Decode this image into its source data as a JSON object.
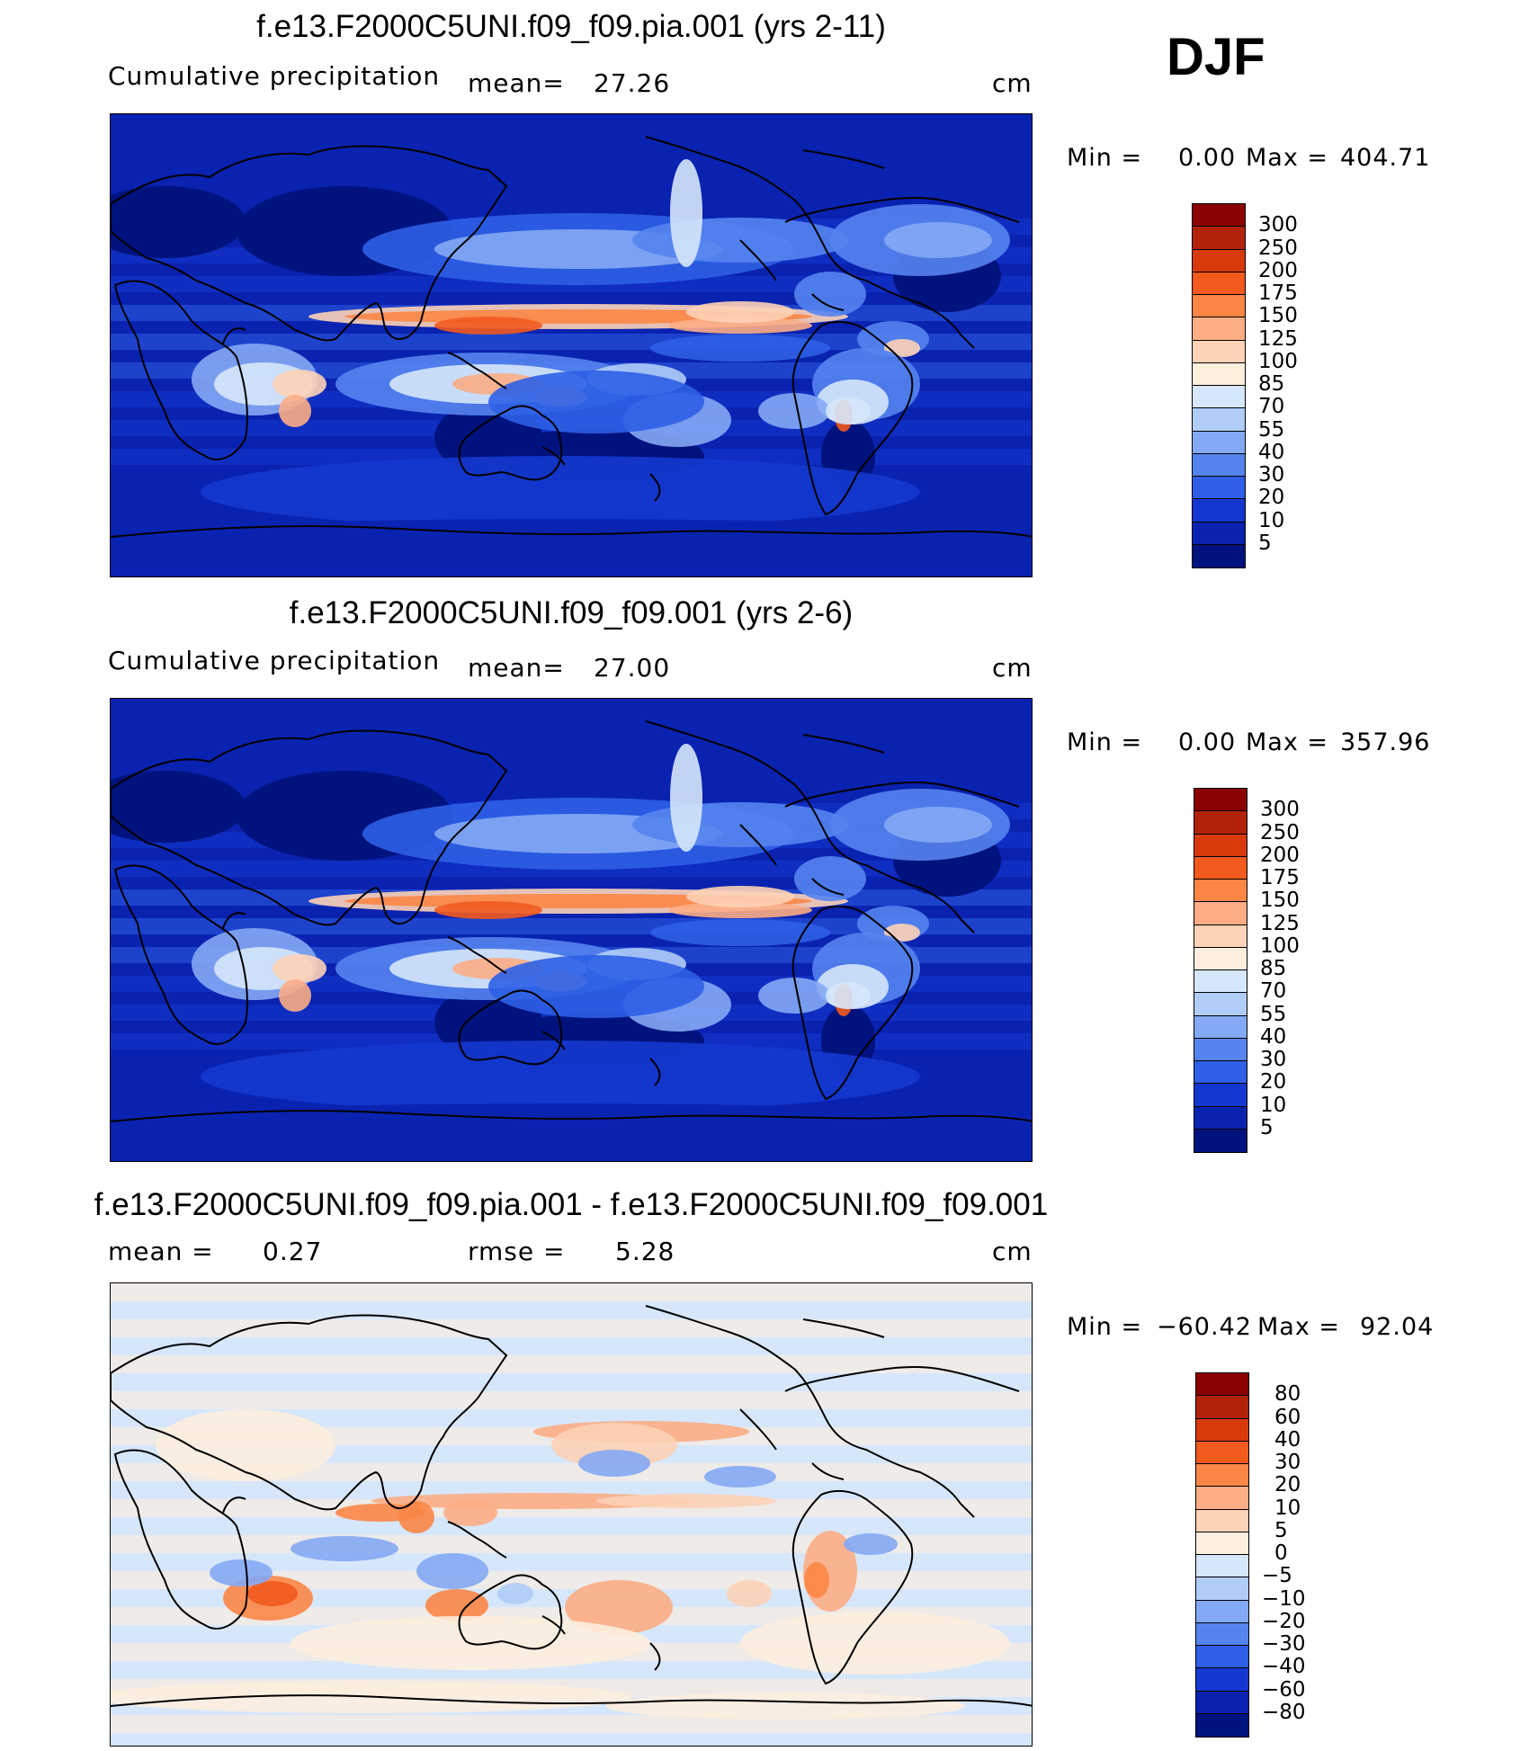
{
  "season": "DJF",
  "panels": [
    {
      "title": "f.e13.F2000C5UNI.f09_f09.pia.001 (yrs 2-11)",
      "variable": "Cumulative precipitation",
      "stat1_label": "mean=",
      "stat1_value": "27.26",
      "units": "cm",
      "min_label": "Min =",
      "min_value": "0.00",
      "max_label": "Max =",
      "max_value": "404.71",
      "colorbar_levels": [
        "300",
        "250",
        "200",
        "175",
        "150",
        "125",
        "100",
        "85",
        "70",
        "55",
        "40",
        "30",
        "20",
        "10",
        "5"
      ],
      "colorbar_colors": [
        "#8b0000",
        "#b22208",
        "#d93a0c",
        "#f25a1e",
        "#fb8646",
        "#fcad85",
        "#fdd2b6",
        "#fdeede",
        "#d6e7fb",
        "#b0cdf8",
        "#84a9f4",
        "#5584ef",
        "#2e5fe6",
        "#1438cf",
        "#0a22b0",
        "#00127d"
      ],
      "field": "abs"
    },
    {
      "title": "f.e13.F2000C5UNI.f09_f09.001 (yrs 2-6)",
      "variable": "Cumulative precipitation",
      "stat1_label": "mean=",
      "stat1_value": "27.00",
      "units": "cm",
      "min_label": "Min =",
      "min_value": "0.00",
      "max_label": "Max =",
      "max_value": "357.96",
      "colorbar_levels": [
        "300",
        "250",
        "200",
        "175",
        "150",
        "125",
        "100",
        "85",
        "70",
        "55",
        "40",
        "30",
        "20",
        "10",
        "5"
      ],
      "colorbar_colors": [
        "#8b0000",
        "#b22208",
        "#d93a0c",
        "#f25a1e",
        "#fb8646",
        "#fcad85",
        "#fdd2b6",
        "#fdeede",
        "#d6e7fb",
        "#b0cdf8",
        "#84a9f4",
        "#5584ef",
        "#2e5fe6",
        "#1438cf",
        "#0a22b0",
        "#00127d"
      ],
      "field": "abs"
    },
    {
      "title": "f.e13.F2000C5UNI.f09_f09.pia.001 - f.e13.F2000C5UNI.f09_f09.001",
      "variable": "",
      "stat1_label": "mean =",
      "stat1_value": "0.27",
      "stat2_label": "rmse =",
      "stat2_value": "5.28",
      "units": "cm",
      "min_label": "Min =",
      "min_value": "−60.42",
      "max_label": "Max =",
      "max_value": "92.04",
      "colorbar_levels": [
        "80",
        "60",
        "40",
        "30",
        "20",
        "10",
        "5",
        "0",
        "−5",
        "−10",
        "−20",
        "−30",
        "−40",
        "−60",
        "−80"
      ],
      "colorbar_colors": [
        "#8b0000",
        "#b22208",
        "#d93a0c",
        "#f25a1e",
        "#fb8646",
        "#fcad85",
        "#fdd2b6",
        "#fdeede",
        "#d6e7fb",
        "#b0cdf8",
        "#84a9f4",
        "#5584ef",
        "#2e5fe6",
        "#1438cf",
        "#0a22b0",
        "#00127d"
      ],
      "field": "diff"
    }
  ]
}
